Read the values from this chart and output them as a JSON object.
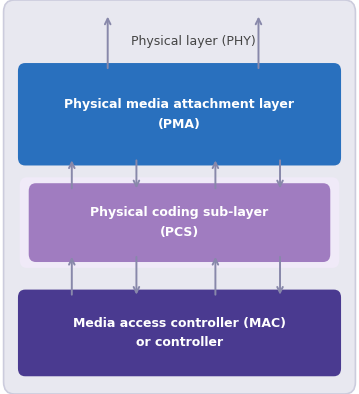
{
  "fig_width": 3.59,
  "fig_height": 3.94,
  "bg_outer": "#ffffff",
  "outer_box_color": "#e8e8f0",
  "outer_box_edge": "#ccccdd",
  "pma_color": "#2970be",
  "pcs_color": "#a07cc0",
  "pcs_outer_color": "#f0eaf8",
  "mac_color": "#4a3a90",
  "text_white": "#ffffff",
  "text_dark": "#444444",
  "arrow_color": "#8888aa",
  "phy_label": "Physical layer (PHY)",
  "pma_line1": "Physical media attachment layer",
  "pma_line2": "(PMA)",
  "pcs_line1": "Physical coding sub-layer",
  "pcs_line2": "(PCS)",
  "mac_line1": "Media access controller (MAC)",
  "mac_line2": "or controller"
}
